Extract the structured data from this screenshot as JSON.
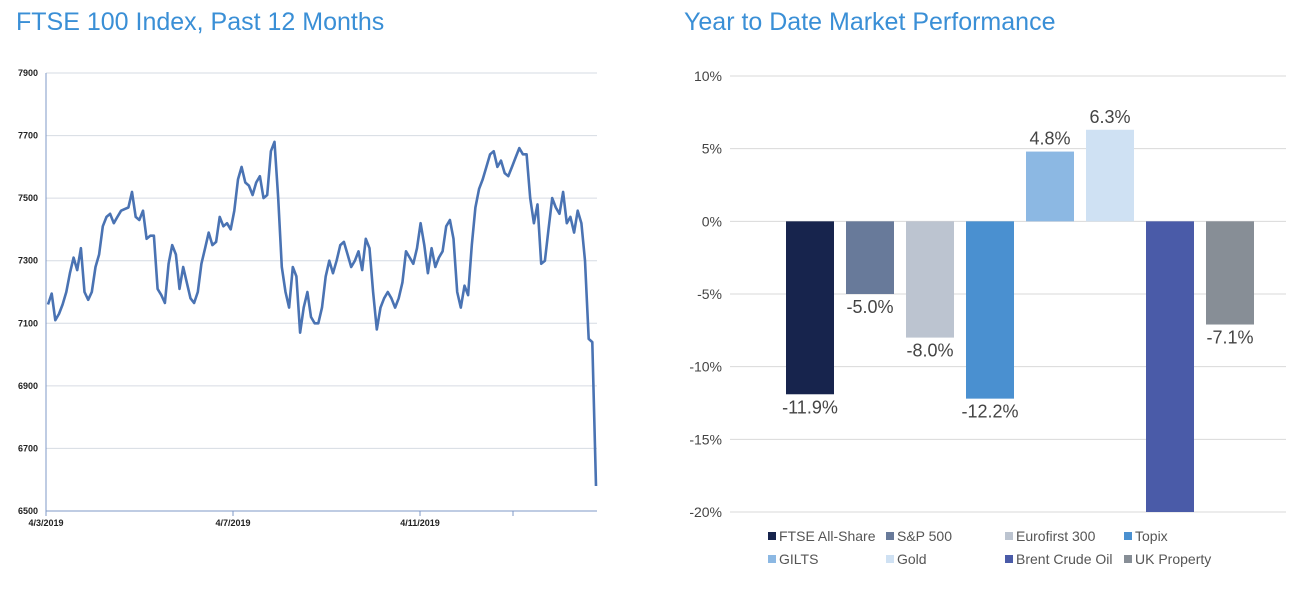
{
  "left_chart": {
    "title": "FTSE 100 Index, Past 12 Months",
    "chart_data": {
      "type": "line",
      "title": "FTSE 100 Index, Past 12 Months",
      "xlabel": "",
      "ylabel": "",
      "ylim": [
        6500,
        7900
      ],
      "yticks": [
        7900,
        7700,
        7500,
        7300,
        7100,
        6900,
        6700,
        6500
      ],
      "xticks": [
        "4/3/2019",
        "4/7/2019",
        "4/11/2019"
      ],
      "grid": true,
      "series": [
        {
          "name": "FTSE 100",
          "color": "#4a73b3",
          "values": [
            7160,
            7195,
            7110,
            7130,
            7160,
            7200,
            7260,
            7310,
            7270,
            7340,
            7200,
            7175,
            7200,
            7280,
            7320,
            7410,
            7440,
            7450,
            7420,
            7440,
            7460,
            7465,
            7470,
            7520,
            7440,
            7430,
            7460,
            7370,
            7380,
            7380,
            7210,
            7190,
            7165,
            7290,
            7350,
            7320,
            7210,
            7280,
            7230,
            7180,
            7165,
            7200,
            7290,
            7340,
            7390,
            7350,
            7360,
            7440,
            7410,
            7420,
            7400,
            7460,
            7560,
            7600,
            7550,
            7540,
            7510,
            7550,
            7570,
            7500,
            7510,
            7650,
            7680,
            7500,
            7280,
            7200,
            7150,
            7280,
            7250,
            7070,
            7150,
            7200,
            7120,
            7100,
            7100,
            7150,
            7250,
            7300,
            7260,
            7300,
            7350,
            7360,
            7320,
            7280,
            7300,
            7330,
            7270,
            7370,
            7340,
            7200,
            7080,
            7150,
            7180,
            7200,
            7180,
            7150,
            7180,
            7230,
            7330,
            7310,
            7290,
            7340,
            7420,
            7350,
            7260,
            7340,
            7280,
            7310,
            7330,
            7410,
            7430,
            7370,
            7200,
            7150,
            7220,
            7190,
            7350,
            7470,
            7530,
            7560,
            7600,
            7640,
            7650,
            7600,
            7620,
            7580,
            7570,
            7600,
            7630,
            7660,
            7640,
            7640,
            7500,
            7420,
            7480,
            7290,
            7300,
            7400,
            7500,
            7470,
            7450,
            7520,
            7420,
            7440,
            7390,
            7460,
            7420,
            7300,
            7050,
            7040,
            6580
          ]
        }
      ]
    }
  },
  "right_chart": {
    "title": "Year to Date Market Performance",
    "chart_data": {
      "type": "bar",
      "title": "Year to Date Market Performance",
      "xlabel": "",
      "ylabel": "",
      "ylim": [
        -20,
        10
      ],
      "yticks": [
        10,
        5,
        0,
        -5,
        -10,
        -15,
        -20
      ],
      "ytick_labels": [
        "10%",
        "5%",
        "0%",
        "-5%",
        "-10%",
        "-15%",
        "-20%"
      ],
      "grid": true,
      "legend_position": "bottom",
      "categories": [
        "FTSE All-Share",
        "S&P 500",
        "Eurofirst 300",
        "Topix",
        "GILTS",
        "Gold",
        "Brent Crude Oil",
        "UK Property"
      ],
      "values": [
        -11.9,
        -5.0,
        -8.0,
        -12.2,
        4.8,
        6.3,
        -20,
        -7.1
      ],
      "data_labels": [
        "-11.9%",
        "-5.0%",
        "-8.0%",
        "-12.2%",
        "4.8%",
        "6.3%",
        "",
        "-7.1%"
      ],
      "colors": [
        "#17244d",
        "#687a9a",
        "#bcc4d0",
        "#4a90d0",
        "#8cb8e3",
        "#cfe1f3",
        "#4a5ba8",
        "#878e96"
      ]
    }
  }
}
